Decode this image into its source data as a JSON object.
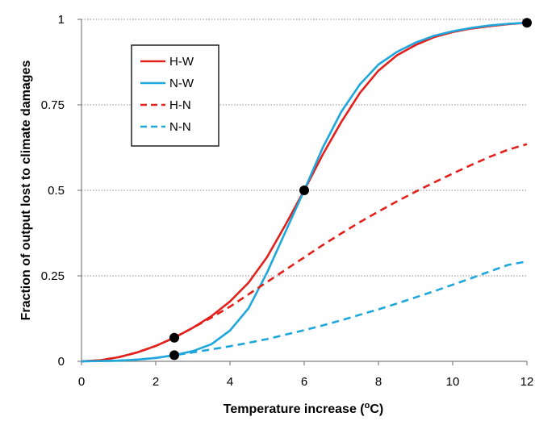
{
  "chart_data": {
    "type": "line",
    "xlabel_main": "Temperature increase (",
    "xlabel_sup": "o",
    "xlabel_end": "C)",
    "ylabel": "Fraction of output lost to climate damages",
    "xlim": [
      0,
      12
    ],
    "ylim": [
      0,
      1
    ],
    "xticks": [
      0,
      2,
      4,
      6,
      8,
      10,
      12
    ],
    "yticks": [
      0,
      0.25,
      0.5,
      0.75,
      1
    ],
    "ytick_labels": [
      "0",
      "0.25",
      "0.5",
      "0.75",
      "1"
    ],
    "grid": "horizontal dotted",
    "legend_position": "top-left",
    "series": [
      {
        "name": "H-W",
        "color": "#e3201b",
        "dash": "solid",
        "x": [
          0,
          0.5,
          1,
          1.5,
          2,
          2.5,
          3,
          3.5,
          4,
          4.5,
          5,
          5.5,
          6,
          6.5,
          7,
          7.5,
          8,
          8.5,
          9,
          9.5,
          10,
          10.5,
          11,
          11.5,
          12
        ],
        "y": [
          0,
          0.003,
          0.012,
          0.026,
          0.045,
          0.069,
          0.098,
          0.132,
          0.175,
          0.23,
          0.305,
          0.4,
          0.5,
          0.605,
          0.7,
          0.785,
          0.85,
          0.895,
          0.925,
          0.948,
          0.963,
          0.973,
          0.98,
          0.986,
          0.99
        ]
      },
      {
        "name": "N-W",
        "color": "#1ea7dc",
        "dash": "solid",
        "x": [
          0,
          0.5,
          1,
          1.5,
          2,
          2.5,
          3,
          3.5,
          4,
          4.5,
          5,
          5.5,
          6,
          6.5,
          7,
          7.5,
          8,
          8.5,
          9,
          9.5,
          10,
          10.5,
          11,
          11.5,
          12
        ],
        "y": [
          0,
          0.001,
          0.002,
          0.005,
          0.01,
          0.018,
          0.03,
          0.05,
          0.09,
          0.155,
          0.26,
          0.38,
          0.5,
          0.625,
          0.73,
          0.81,
          0.868,
          0.905,
          0.932,
          0.952,
          0.965,
          0.975,
          0.982,
          0.987,
          0.99
        ]
      },
      {
        "name": "H-N",
        "color": "#e3201b",
        "dash": "dashed",
        "x": [
          0,
          0.5,
          1,
          1.5,
          2,
          2.5,
          3,
          3.5,
          4,
          4.5,
          5,
          5.5,
          6,
          6.5,
          7,
          7.5,
          8,
          8.5,
          9,
          9.5,
          10,
          10.5,
          11,
          11.5,
          12
        ],
        "y": [
          0,
          0.003,
          0.012,
          0.026,
          0.045,
          0.069,
          0.098,
          0.128,
          0.16,
          0.196,
          0.232,
          0.268,
          0.304,
          0.34,
          0.374,
          0.407,
          0.438,
          0.468,
          0.496,
          0.523,
          0.549,
          0.574,
          0.598,
          0.619,
          0.635
        ]
      },
      {
        "name": "N-N",
        "color": "#1ea7dc",
        "dash": "dashed",
        "x": [
          0,
          0.5,
          1,
          1.5,
          2,
          2.5,
          3,
          3.5,
          4,
          4.5,
          5,
          5.5,
          6,
          6.5,
          7,
          7.5,
          8,
          8.5,
          9,
          9.5,
          10,
          10.5,
          11,
          11.5,
          12
        ],
        "y": [
          0,
          0.001,
          0.002,
          0.005,
          0.01,
          0.018,
          0.026,
          0.035,
          0.044,
          0.054,
          0.065,
          0.078,
          0.091,
          0.105,
          0.12,
          0.136,
          0.152,
          0.169,
          0.187,
          0.205,
          0.224,
          0.243,
          0.263,
          0.282,
          0.292
        ]
      }
    ],
    "markers": [
      {
        "x": 2.5,
        "y": 0.069
      },
      {
        "x": 2.5,
        "y": 0.018
      },
      {
        "x": 6,
        "y": 0.5
      },
      {
        "x": 12,
        "y": 0.99
      }
    ],
    "marker_color": "#000000"
  }
}
